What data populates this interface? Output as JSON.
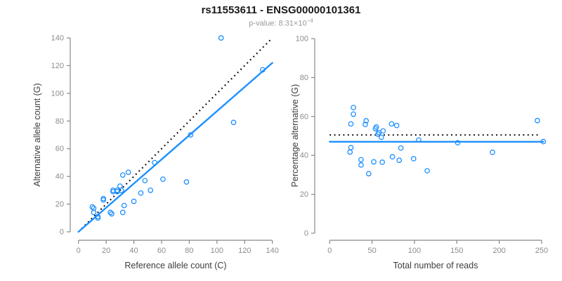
{
  "header": {
    "title": "rs11553611 - ENSG00000101361",
    "pvalue_prefix": "p-value: ",
    "pvalue_base": "8.31×10",
    "pvalue_exponent": "−4"
  },
  "colors": {
    "accent_blue": "#1E90FF",
    "dotted_black": "#000000",
    "axis_gray": "#888888",
    "tick_label_gray": "#8c8c8c",
    "axis_title_gray": "#3d3d3d",
    "subtitle_gray": "#999999"
  },
  "chart_data": [
    {
      "type": "scatter",
      "panel": "left",
      "xlabel": "Reference allele count (C)",
      "ylabel": "Alternative allele count (G)",
      "xlim": [
        0,
        140
      ],
      "ylim": [
        0,
        140
      ],
      "xticks": [
        0,
        20,
        40,
        60,
        80,
        100,
        120,
        140
      ],
      "yticks": [
        0,
        20,
        40,
        60,
        80,
        100,
        120,
        140
      ],
      "grid": false,
      "legend": "none",
      "points": [
        [
          10,
          18
        ],
        [
          11,
          17
        ],
        [
          11,
          14
        ],
        [
          14,
          11
        ],
        [
          14,
          10
        ],
        [
          18,
          24
        ],
        [
          18,
          23
        ],
        [
          23,
          14
        ],
        [
          24,
          13
        ],
        [
          25,
          30
        ],
        [
          25,
          29
        ],
        [
          28,
          30
        ],
        [
          28,
          29
        ],
        [
          30,
          33
        ],
        [
          31,
          30
        ],
        [
          32,
          41
        ],
        [
          32,
          14
        ],
        [
          33,
          19
        ],
        [
          36,
          43
        ],
        [
          40,
          22
        ],
        [
          45,
          28
        ],
        [
          48,
          37
        ],
        [
          52,
          30
        ],
        [
          55,
          50
        ],
        [
          61,
          38
        ],
        [
          78,
          36
        ],
        [
          81,
          70
        ],
        [
          103,
          140
        ],
        [
          112,
          79
        ],
        [
          133,
          117
        ]
      ],
      "fit_line": {
        "meaning": "regression fit",
        "x": [
          0,
          140
        ],
        "y": [
          0,
          122
        ]
      },
      "dotted_line": {
        "meaning": "identity y = x",
        "x": [
          0,
          139
        ],
        "y": [
          0,
          139
        ]
      }
    },
    {
      "type": "scatter",
      "panel": "right",
      "xlabel": "Total number of reads",
      "ylabel": "Percentage alternative (G)",
      "xlim": [
        0,
        250
      ],
      "ylim": [
        0,
        100
      ],
      "xticks": [
        0,
        50,
        100,
        150,
        200,
        250
      ],
      "yticks": [
        0,
        20,
        40,
        60,
        80,
        100
      ],
      "grid": false,
      "legend": "none",
      "points": [
        [
          28,
          64.6
        ],
        [
          28,
          61.2
        ],
        [
          25,
          56.2
        ],
        [
          25,
          44
        ],
        [
          24,
          41.7
        ],
        [
          43,
          57.8
        ],
        [
          42,
          55.9
        ],
        [
          37,
          37.8
        ],
        [
          37,
          35.1
        ],
        [
          55,
          54.6
        ],
        [
          54,
          53.7
        ],
        [
          58,
          51.7
        ],
        [
          57,
          50.9
        ],
        [
          63,
          52.6
        ],
        [
          61,
          49.3
        ],
        [
          73,
          56.2
        ],
        [
          52,
          36.7
        ],
        [
          46,
          30.6
        ],
        [
          79,
          55.4
        ],
        [
          62,
          36.5
        ],
        [
          74,
          39.3
        ],
        [
          84,
          43.8
        ],
        [
          82,
          37.5
        ],
        [
          105,
          47.9
        ],
        [
          99,
          38.3
        ],
        [
          115,
          32.1
        ],
        [
          151,
          46.5
        ],
        [
          245,
          57.9
        ],
        [
          192,
          41.6
        ],
        [
          252,
          47.1
        ]
      ],
      "fit_line": {
        "meaning": "mean percentage",
        "x": [
          0,
          252
        ],
        "y": [
          47,
          47
        ]
      },
      "dotted_line": {
        "meaning": "50% reference",
        "x": [
          0,
          247
        ],
        "y": [
          50.5,
          50.5
        ]
      }
    }
  ]
}
